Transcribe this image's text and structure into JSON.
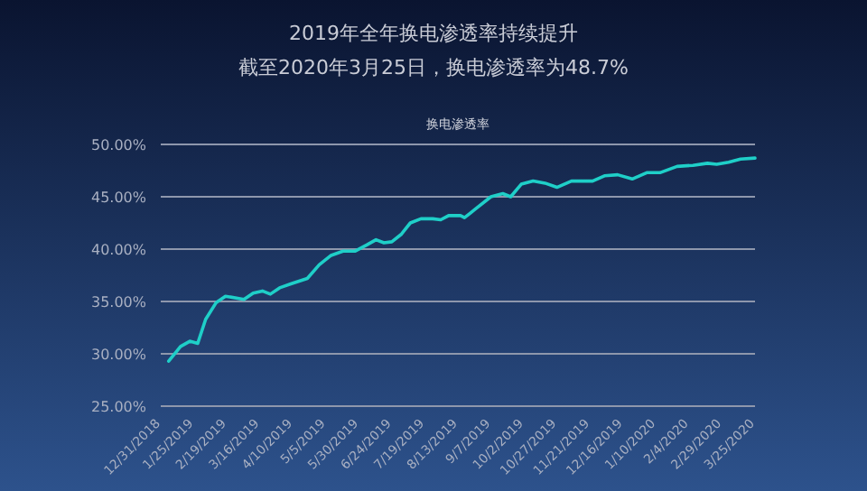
{
  "chart_data": {
    "type": "line",
    "title": "2019年全年换电渗透率持续提升",
    "subtitle": "截至2020年3月25日，换电渗透率为48.7%",
    "annotations": [
      "换电渗透率"
    ],
    "x": [
      "2019-01-06",
      "2019-01-15",
      "2019-01-22",
      "2019-01-28",
      "2019-02-03",
      "2019-02-11",
      "2019-02-18",
      "2019-03-04",
      "2019-03-11",
      "2019-03-18",
      "2019-03-24",
      "2019-03-31",
      "2019-04-09",
      "2019-04-21",
      "2019-04-30",
      "2019-05-09",
      "2019-05-18",
      "2019-05-27",
      "2019-06-05",
      "2019-06-12",
      "2019-06-18",
      "2019-06-24",
      "2019-07-01",
      "2019-07-08",
      "2019-07-16",
      "2019-07-25",
      "2019-07-31",
      "2019-08-06",
      "2019-08-15",
      "2019-08-18",
      "2019-08-22",
      "2019-08-26",
      "2019-09-07",
      "2019-09-16",
      "2019-09-22",
      "2019-09-30",
      "2019-10-09",
      "2019-10-18",
      "2019-10-27",
      "2019-11-07",
      "2019-11-23",
      "2019-12-02",
      "2019-12-12",
      "2019-12-23",
      "2020-01-03",
      "2020-01-13",
      "2020-01-26",
      "2020-02-07",
      "2020-02-18",
      "2020-02-25",
      "2020-03-05",
      "2020-03-14",
      "2020-03-25"
    ],
    "series": [
      {
        "color": "#1fcfc8",
        "values": [
          29.3,
          30.7,
          31.2,
          31.0,
          33.3,
          34.9,
          35.5,
          35.2,
          35.8,
          36.0,
          35.7,
          36.3,
          36.7,
          37.2,
          38.5,
          39.4,
          39.8,
          39.8,
          40.4,
          40.9,
          40.6,
          40.7,
          41.4,
          42.5,
          42.9,
          42.9,
          42.8,
          43.2,
          43.2,
          43.0,
          43.4,
          43.8,
          45.0,
          45.3,
          45.0,
          46.2,
          46.5,
          46.3,
          45.9,
          46.5,
          46.5,
          47.0,
          47.1,
          46.7,
          47.3,
          47.3,
          47.9,
          48.0,
          48.2,
          48.1,
          48.3,
          48.6,
          48.7
        ]
      }
    ],
    "xlim": [
      "2018-12-31",
      "2020-03-25"
    ],
    "xticks": [
      {
        "value": "2018-12-31",
        "label": "12/31/2018"
      },
      {
        "value": "2019-01-25",
        "label": "1/25/2019"
      },
      {
        "value": "2019-02-19",
        "label": "2/19/2019"
      },
      {
        "value": "2019-03-16",
        "label": "3/16/2019"
      },
      {
        "value": "2019-04-10",
        "label": "4/10/2019"
      },
      {
        "value": "2019-05-05",
        "label": "5/5/2019"
      },
      {
        "value": "2019-05-30",
        "label": "5/30/2019"
      },
      {
        "value": "2019-06-24",
        "label": "6/24/2019"
      },
      {
        "value": "2019-07-19",
        "label": "7/19/2019"
      },
      {
        "value": "2019-08-13",
        "label": "8/13/2019"
      },
      {
        "value": "2019-09-07",
        "label": "9/7/2019"
      },
      {
        "value": "2019-10-02",
        "label": "10/2/2019"
      },
      {
        "value": "2019-10-27",
        "label": "10/27/2019"
      },
      {
        "value": "2019-11-21",
        "label": "11/21/2019"
      },
      {
        "value": "2019-12-16",
        "label": "12/16/2019"
      },
      {
        "value": "2020-01-10",
        "label": "1/10/2020"
      },
      {
        "value": "2020-02-04",
        "label": "2/4/2020"
      },
      {
        "value": "2020-02-29",
        "label": "2/29/2020"
      },
      {
        "value": "2020-03-25",
        "label": "3/25/2020"
      }
    ],
    "ylim": [
      25,
      50
    ],
    "yticks": [
      {
        "value": 25,
        "label": "25.00%"
      },
      {
        "value": 30,
        "label": "30.00%"
      },
      {
        "value": 35,
        "label": "35.00%"
      },
      {
        "value": 40,
        "label": "40.00%"
      },
      {
        "value": 45,
        "label": "45.00%"
      },
      {
        "value": 50,
        "label": "50.00%"
      }
    ],
    "grid": "y",
    "marker": "none",
    "line_style": "solid"
  }
}
